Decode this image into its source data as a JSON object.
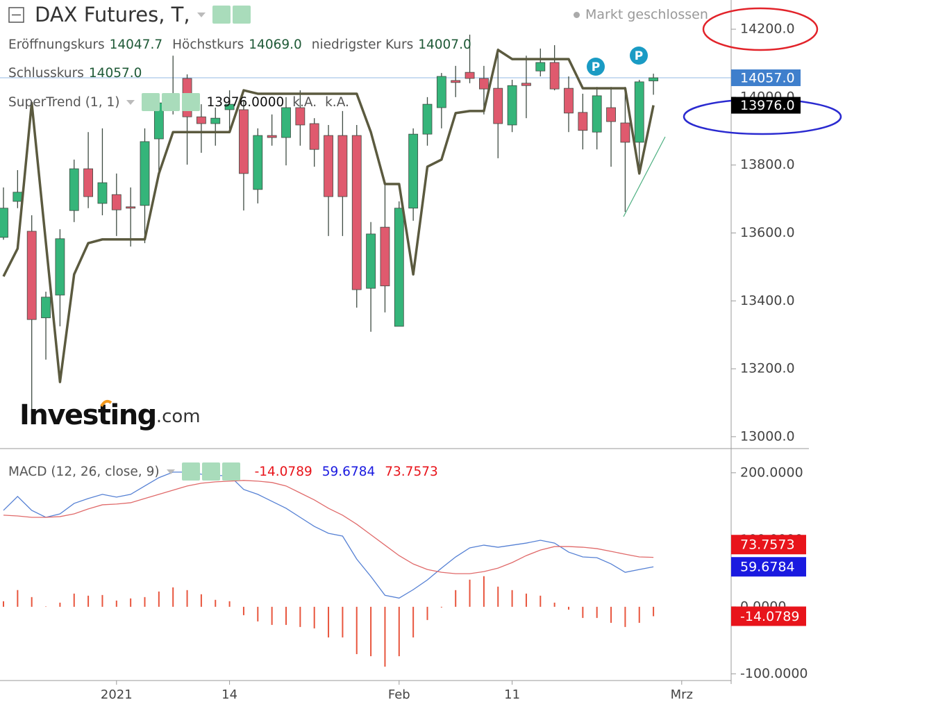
{
  "header": {
    "title": "DAX Futures, T,",
    "status": "Markt geschlossen"
  },
  "logo": {
    "main": "Investing",
    "suffix": ".com"
  },
  "chart_data": [
    {
      "type": "candlestick",
      "legend": [
        {
          "label": "Eröffnungskurs",
          "value": "14047.7"
        },
        {
          "label": "Höchstkurs",
          "value": "14069.0"
        },
        {
          "label": "niedrigster Kurs",
          "value": "14007.0"
        },
        {
          "label": "Schlusskurs",
          "value": "14057.0"
        }
      ],
      "categories": [
        null,
        null,
        null,
        null,
        null,
        null,
        null,
        null,
        "2021",
        null,
        null,
        null,
        null,
        null,
        null,
        null,
        "14",
        null,
        null,
        null,
        null,
        null,
        null,
        null,
        null,
        null,
        null,
        null,
        "Feb",
        null,
        null,
        null,
        null,
        null,
        null,
        null,
        "11",
        null,
        null,
        null,
        null,
        null,
        null,
        null,
        null,
        null,
        null,
        null,
        "Mrz"
      ],
      "open": [
        13587,
        13693,
        13605,
        13350,
        13417,
        13666,
        13789,
        13687,
        13713,
        13677,
        13681,
        13877,
        13979,
        14055,
        13942,
        13922,
        13963,
        13963,
        13728,
        13887,
        13881,
        13969,
        13922,
        13887,
        13887,
        13887,
        13437,
        13617,
        13325,
        13673,
        13891,
        13969,
        14049,
        14073,
        14055,
        14026,
        13918,
        14041,
        14077,
        14102,
        14026,
        13955,
        13897,
        13969,
        13924,
        13867,
        14047.7,
        null,
        null
      ],
      "high": [
        13734,
        13785,
        13652,
        13427,
        13611,
        13816,
        13897,
        13908,
        13775,
        13734,
        13908,
        14010,
        14122,
        14067,
        13979,
        13969,
        14020,
        13989,
        13908,
        13949,
        14000,
        14020,
        13938,
        13918,
        13959,
        13918,
        13632,
        13744,
        13693,
        13908,
        14000,
        14071,
        14092,
        14184,
        14092,
        14143,
        14051,
        14122,
        14143,
        14153,
        14061,
        14010,
        14030,
        14030,
        14030,
        14051,
        14069,
        null,
        null
      ],
      "low": [
        13580,
        13673,
        13059,
        13227,
        13325,
        13632,
        13673,
        13652,
        13591,
        13560,
        13570,
        13765,
        13949,
        13801,
        13836,
        13857,
        13897,
        13666,
        13687,
        13857,
        13799,
        13857,
        13795,
        13591,
        13591,
        13380,
        13309,
        13366,
        13325,
        13636,
        13857,
        13908,
        14000,
        14041,
        13949,
        13820,
        13897,
        13938,
        14061,
        14020,
        13897,
        13846,
        13846,
        13795,
        13662,
        13795,
        14007,
        null,
        null
      ],
      "close": [
        13673,
        13720,
        13345,
        13411,
        13583,
        13789,
        13707,
        13748,
        13668,
        13673,
        13869,
        13983,
        14006,
        13942,
        13922,
        13938,
        13979,
        13775,
        13887,
        13881,
        13969,
        13918,
        13846,
        13707,
        13707,
        13433,
        13597,
        13444,
        13673,
        13891,
        13979,
        14061,
        14043,
        14055,
        14024,
        13922,
        14034,
        14034,
        14102,
        14024,
        13953,
        13902,
        14004,
        13928,
        13867,
        14045,
        14057,
        null,
        null
      ],
      "up_color": "#35b57a",
      "down_color": "#df5a6e",
      "wick_color": "#3e4b42",
      "ylim": [
        12967,
        14286
      ],
      "yticks": [
        {
          "value": 13000,
          "label": "13000.0"
        },
        {
          "value": 13200,
          "label": "13200.0"
        },
        {
          "value": 13400,
          "label": "13400.0"
        },
        {
          "value": 13600,
          "label": "13600.0"
        },
        {
          "value": 13800,
          "label": "13800.0"
        },
        {
          "value": 14000,
          "label": "14000.0"
        },
        {
          "value": 14200,
          "label": "14200.0"
        }
      ],
      "last_price": {
        "value": 14057,
        "label": "14057.0",
        "color": "#3f7fcc"
      },
      "indicator": {
        "name": "SuperTrend (1, 1)",
        "color": "#5b5a3f",
        "last_label": "13976.0000",
        "notes": [
          "k.A.",
          "k.A."
        ],
        "values": [
          13472,
          13554,
          13983,
          13572,
          13161,
          13478,
          13570,
          13581,
          13581,
          13581,
          13581,
          13775,
          13897,
          13897,
          13897,
          13897,
          13897,
          14020,
          14010,
          14010,
          14010,
          14010,
          14010,
          14010,
          14010,
          14010,
          13897,
          13744,
          13744,
          13478,
          13795,
          13816,
          13953,
          13959,
          13959,
          14139,
          14112,
          14112,
          14112,
          14112,
          14112,
          14026,
          14026,
          14026,
          14026,
          13775,
          13976,
          null,
          null
        ],
        "marker": {
          "value": 13976,
          "label": "13976.0",
          "color": "#000000"
        }
      },
      "pivot_label": "P"
    },
    {
      "type": "macd",
      "title": "MACD (12, 26, close, 9)",
      "ylim": [
        -110,
        234
      ],
      "yticks": [
        {
          "value": 200,
          "label": "200.0000"
        },
        {
          "value": 100,
          "label": "100.0000"
        },
        {
          "value": 0,
          "label": "0.0000"
        },
        {
          "value": -100,
          "label": "-100.0000"
        }
      ],
      "series": [
        {
          "type": "bar",
          "color": "#e8553d",
          "label_color": "#e8141b",
          "last_label": "-14.0789",
          "values": [
            8.3,
            25,
            14.5,
            0.5,
            6.2,
            19.7,
            16.6,
            17.6,
            9.3,
            12.5,
            14.5,
            22.8,
            29,
            24.9,
            18.7,
            10.4,
            8.3,
            -12.5,
            -21.8,
            -27,
            -27,
            -30.1,
            -32.2,
            -45.7,
            -45.7,
            -70.6,
            -73.7,
            -89.3,
            -73.7,
            -45.7,
            -19.7,
            -1,
            24.9,
            40.5,
            45.7,
            30.1,
            24.9,
            19.7,
            16.6,
            6.2,
            -4.2,
            -16.6,
            -16.6,
            -23.9,
            -30.1,
            -23.9,
            -14.0789,
            null,
            null
          ]
        },
        {
          "type": "line",
          "color": "#5580d4",
          "label_color": "#1a1ae0",
          "last_label": "59.6784",
          "values": [
            143.9,
            164.7,
            143.9,
            133.5,
            138.7,
            154.3,
            161.6,
            167.8,
            163.7,
            167.8,
            180.3,
            192.7,
            201,
            201,
            197.9,
            195.8,
            195.8,
            175.1,
            167.8,
            157.4,
            147,
            133.5,
            120,
            109.7,
            105.5,
            71.2,
            45.3,
            17.2,
            13,
            25.6,
            40.1,
            57.7,
            74.4,
            87.9,
            92,
            88.9,
            92,
            95.1,
            99.3,
            95.1,
            81.6,
            74.4,
            73.3,
            64,
            51.5,
            55.7,
            59.6784,
            null,
            null
          ]
        },
        {
          "type": "line",
          "color": "#e06a6a",
          "label_color": "#e8141b",
          "last_label": "73.7573",
          "values": [
            136.7,
            135.6,
            133.5,
            133.5,
            134.6,
            138.7,
            146,
            152.2,
            153.3,
            155.3,
            161.6,
            167.8,
            174,
            180.3,
            184.4,
            186.5,
            187.5,
            188.6,
            187.5,
            185.5,
            180.3,
            169.9,
            159.5,
            147,
            136.7,
            123.2,
            107.6,
            92,
            76.4,
            63.9,
            55.7,
            51.5,
            49.4,
            49.4,
            52.5,
            57.7,
            66,
            76.4,
            84.7,
            89.9,
            89.9,
            88.9,
            86.8,
            82.7,
            78.5,
            74.4,
            73.7573,
            null,
            null
          ]
        }
      ]
    }
  ]
}
